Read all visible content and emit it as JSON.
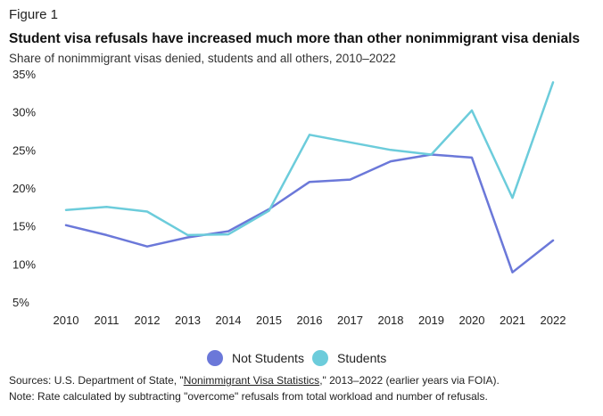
{
  "figure_label": "Figure 1",
  "chart_data": {
    "type": "line",
    "title": "Student visa refusals have increased much more than other nonimmigrant visa denials",
    "subtitle": "Share of nonimmigrant visas denied, students and all others, 2010–2022",
    "xlabel": "",
    "ylabel": "",
    "categories": [
      "2010",
      "2011",
      "2012",
      "2013",
      "2014",
      "2015",
      "2016",
      "2017",
      "2018",
      "2019",
      "2020",
      "2021",
      "2022"
    ],
    "y_ticks": [
      5,
      10,
      15,
      20,
      25,
      30,
      35
    ],
    "y_tick_labels": [
      "5%",
      "10%",
      "15%",
      "20%",
      "25%",
      "30%",
      "35%"
    ],
    "ylim": [
      5,
      35
    ],
    "grid": false,
    "legend_position": "bottom",
    "series": [
      {
        "name": "Not Students",
        "color": "#6b78d9",
        "values": [
          15.1,
          13.8,
          12.3,
          13.5,
          14.3,
          17.2,
          20.8,
          21.1,
          23.5,
          24.4,
          24.0,
          8.9,
          13.1
        ]
      },
      {
        "name": "Students",
        "color": "#6cccdb",
        "values": [
          17.1,
          17.5,
          16.9,
          13.8,
          13.9,
          17.0,
          27.0,
          26.0,
          25.0,
          24.4,
          30.2,
          18.7,
          33.9
        ]
      }
    ]
  },
  "footer": {
    "source_prefix": "Sources: U.S. Department of State, \"",
    "source_link": "Nonimmigrant Visa Statistics",
    "source_suffix": ",\" 2013–2022 (earlier years via FOIA).",
    "note": "Note: Rate calculated by subtracting \"overcome\" refusals from total workload and number of refusals."
  }
}
